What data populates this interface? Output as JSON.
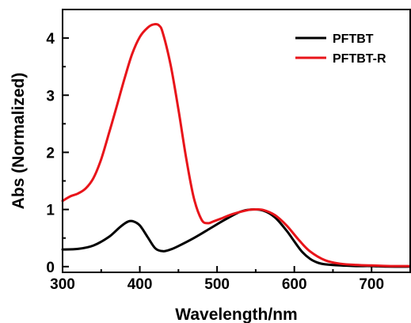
{
  "chart_data": {
    "type": "line",
    "title": "",
    "xlabel": "Wavelength/nm",
    "ylabel": "Abs (Normalized)",
    "xlim": [
      300,
      750
    ],
    "ylim": [
      -0.1,
      4.5
    ],
    "x_ticks": [
      300,
      400,
      500,
      600,
      700
    ],
    "y_ticks": [
      0,
      1,
      2,
      3,
      4
    ],
    "grid": false,
    "legend_position": "top-right",
    "series": [
      {
        "name": "PFTBT",
        "color": "#000000",
        "x": [
          300,
          320,
          340,
          360,
          375,
          385,
          392,
          400,
          410,
          420,
          430,
          440,
          450,
          470,
          490,
          510,
          530,
          545,
          560,
          575,
          590,
          600,
          610,
          620,
          630,
          640,
          660,
          680,
          700,
          720,
          750
        ],
        "y": [
          0.3,
          0.31,
          0.37,
          0.52,
          0.7,
          0.79,
          0.79,
          0.72,
          0.52,
          0.32,
          0.27,
          0.3,
          0.36,
          0.5,
          0.66,
          0.82,
          0.96,
          1.0,
          0.98,
          0.86,
          0.63,
          0.44,
          0.26,
          0.14,
          0.07,
          0.04,
          0.02,
          0.01,
          0.01,
          0.0,
          0.0
        ]
      },
      {
        "name": "PFTBT-R",
        "color": "#e8141a",
        "x": [
          300,
          310,
          320,
          330,
          340,
          350,
          360,
          370,
          380,
          390,
          400,
          410,
          418,
          425,
          430,
          440,
          450,
          460,
          470,
          480,
          488,
          495,
          505,
          520,
          540,
          548,
          560,
          575,
          590,
          605,
          620,
          640,
          660,
          680,
          700,
          725,
          750
        ],
        "y": [
          1.15,
          1.23,
          1.28,
          1.37,
          1.55,
          1.88,
          2.33,
          2.8,
          3.28,
          3.72,
          4.02,
          4.18,
          4.24,
          4.22,
          4.08,
          3.52,
          2.75,
          1.9,
          1.2,
          0.82,
          0.76,
          0.79,
          0.84,
          0.92,
          0.99,
          1.0,
          0.99,
          0.9,
          0.72,
          0.48,
          0.27,
          0.11,
          0.05,
          0.03,
          0.02,
          0.01,
          0.01
        ]
      }
    ]
  }
}
